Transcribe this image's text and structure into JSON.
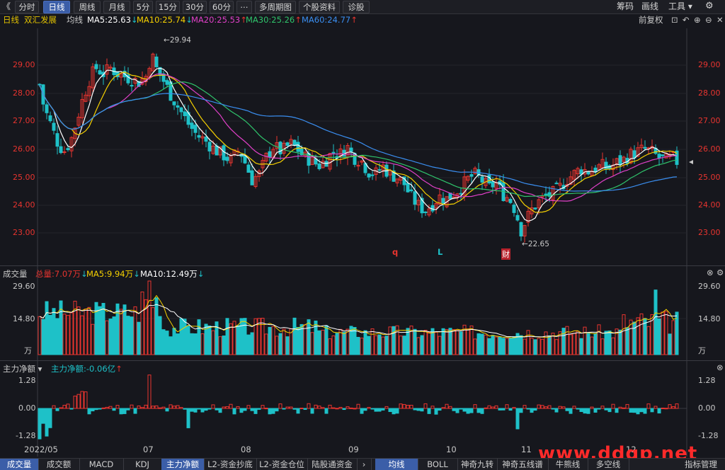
{
  "toolbar": {
    "back_icon": "《",
    "tabs": [
      "分时",
      "日线",
      "周线",
      "月线",
      "5分",
      "15分",
      "30分",
      "60分",
      "⋯",
      "多周期图",
      "个股资料",
      "诊股"
    ],
    "active_tab": "日线",
    "right_items": [
      "筹码",
      "画线",
      "工具 ▾"
    ],
    "settings_icon": "gear-icon"
  },
  "ma_bar": {
    "period": "日线",
    "stock_name": "双汇发展",
    "avg_line": "均线",
    "ma5": "MA5:25.63",
    "ma10": "MA10:25.74",
    "ma20": "MA20:25.53",
    "ma30": "MA30:25.26",
    "ma60": "MA60:24.77",
    "adjust": "前复权",
    "colors": {
      "ma5": "#ffffff",
      "ma10": "#f5d000",
      "ma20": "#e040c8",
      "ma30": "#2fc46b",
      "ma60": "#3a8ef0"
    }
  },
  "price_axis": [
    "29.00",
    "28.00",
    "27.00",
    "26.00",
    "25.00",
    "24.00",
    "23.00"
  ],
  "annotations": {
    "high": "29.94",
    "low": "22.65",
    "marker_q": "q",
    "marker_l": "L",
    "marker_cai": "财"
  },
  "volume_panel": {
    "title": "成交量",
    "total": "总量:7.07万",
    "ma5": "MA5:9.94万",
    "ma10": "MA10:12.49万",
    "axis": [
      "29.60",
      "14.80",
      "万"
    ]
  },
  "flow_panel": {
    "title": "主力净额",
    "value": "主力净额:-0.06亿",
    "axis": [
      "1.28",
      "0.00",
      "-1.28"
    ]
  },
  "dates": [
    "2022/05",
    "07",
    "08",
    "09",
    "10",
    "11",
    "12"
  ],
  "bottom_tabs": [
    "成交量",
    "成交额",
    "MACD",
    "KDJ",
    "主力净额",
    "L2-资金抄底",
    "L2-资金仓位",
    "陆股通资金"
  ],
  "bottom_tabs_right": [
    "均线",
    "BOLL",
    "神奇九转",
    "神奇五线谱",
    "牛熊线",
    "多空线",
    "指标管理"
  ],
  "bottom_active": "主力净额",
  "bottom_right_active": "均线",
  "watermark": "www.ddgp.net",
  "chart_data": {
    "type": "candlestick",
    "ylim": [
      22.5,
      30.0
    ],
    "up_color": "#e8342f",
    "down_color": "#1ec1c8",
    "ohlc_summary": {
      "high": 29.94,
      "low": 22.65
    },
    "volume_ylim": [
      0,
      29.6
    ],
    "flow_ylim": [
      -1.28,
      1.28
    ]
  }
}
